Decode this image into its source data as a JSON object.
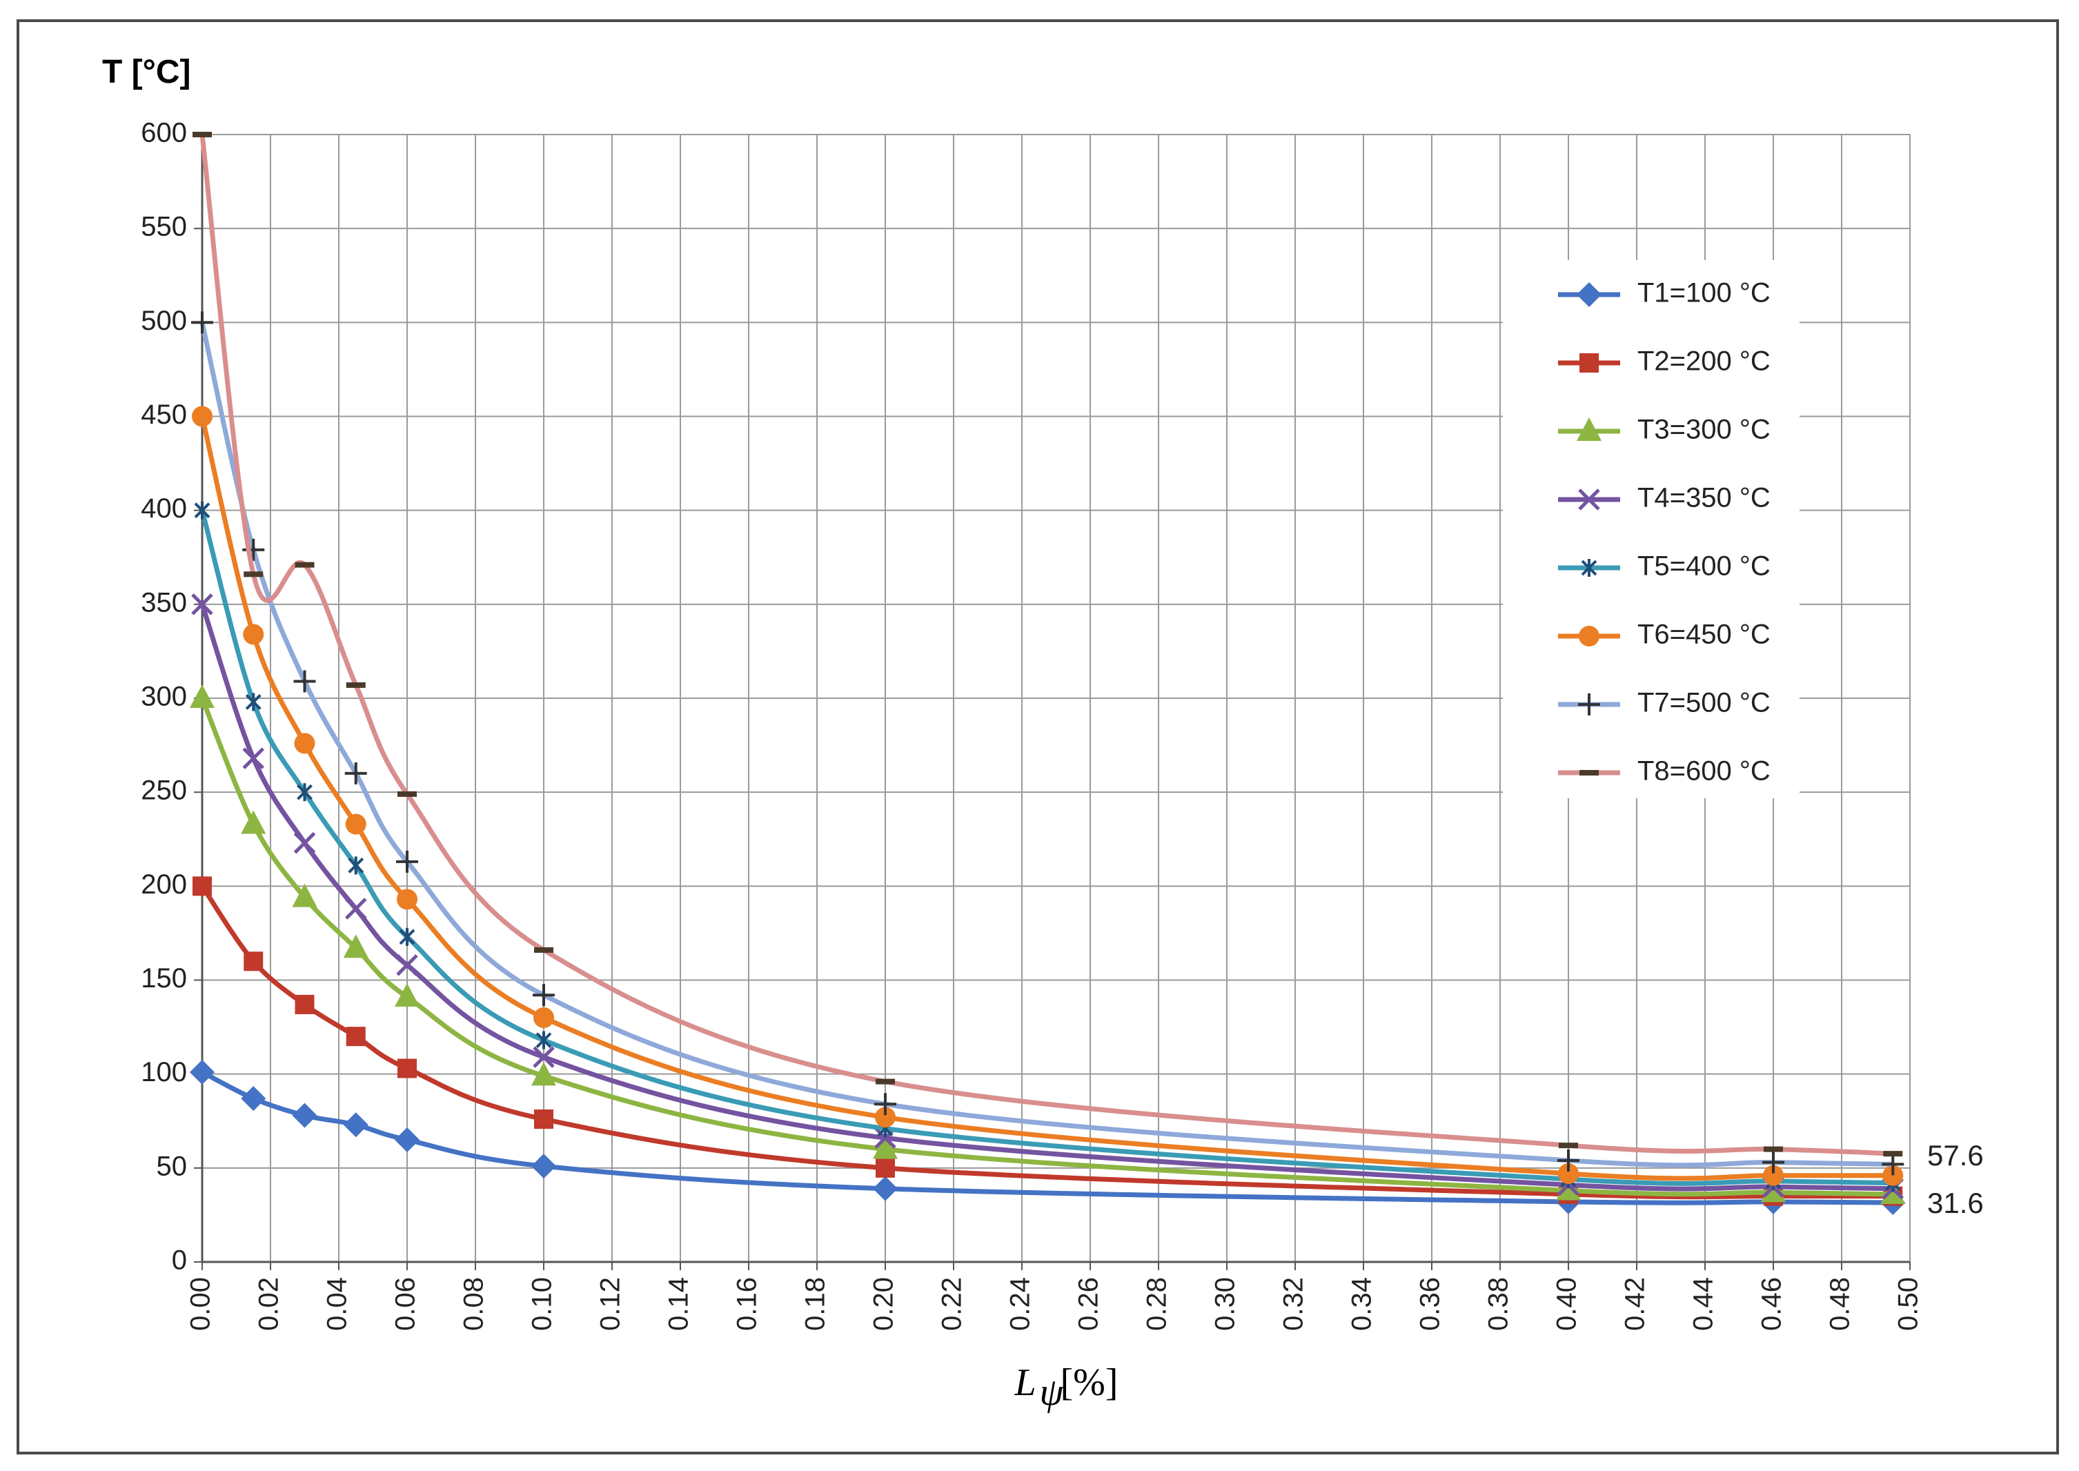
{
  "chart_data": {
    "type": "line",
    "ylabel": "T [°C]",
    "xlabel": "L",
    "xlabel_sub": "ψ",
    "xlabel_unit": "[%]",
    "xlim": [
      0,
      0.5
    ],
    "ylim": [
      0,
      600
    ],
    "grid": true,
    "legend_position": "right",
    "x_ticks": [
      "0.00",
      "0.02",
      "0.04",
      "0.06",
      "0.08",
      "0.10",
      "0.12",
      "0.14",
      "0.16",
      "0.18",
      "0.20",
      "0.22",
      "0.24",
      "0.26",
      "0.28",
      "0.30",
      "0.32",
      "0.34",
      "0.36",
      "0.38",
      "0.40",
      "0.42",
      "0.44",
      "0.46",
      "0.48",
      "0.50"
    ],
    "y_ticks": [
      "0",
      "50",
      "100",
      "150",
      "200",
      "250",
      "300",
      "350",
      "400",
      "450",
      "500",
      "550",
      "600"
    ],
    "x": [
      0.0,
      0.015,
      0.03,
      0.045,
      0.06,
      0.1,
      0.2,
      0.4,
      0.46,
      0.495
    ],
    "series": [
      {
        "name": "T1=100 °C",
        "color": "#4472C4",
        "marker": "diamond",
        "values": [
          101,
          87,
          78,
          73,
          65,
          51,
          39,
          32,
          32,
          31.6
        ]
      },
      {
        "name": "T2=200 °C",
        "color": "#C0392B",
        "marker": "square",
        "values": [
          200,
          160,
          137,
          120,
          103,
          76,
          50,
          36,
          35,
          35
        ]
      },
      {
        "name": "T3=300 °C",
        "color": "#8DB542",
        "marker": "triangle",
        "values": [
          300,
          233,
          194,
          167,
          141,
          99,
          60,
          38,
          37,
          36
        ]
      },
      {
        "name": "T4=350 °C",
        "color": "#7453A0",
        "marker": "x",
        "values": [
          350,
          268,
          223,
          188,
          158,
          109,
          66,
          41,
          40,
          39
        ]
      },
      {
        "name": "T5=400 °C",
        "color": "#3A9BB5",
        "marker": "star",
        "values": [
          400,
          298,
          250,
          211,
          173,
          118,
          71,
          44,
          43,
          42
        ]
      },
      {
        "name": "T6=450 °C",
        "color": "#EB7D23",
        "marker": "circle",
        "values": [
          450,
          334,
          276,
          233,
          193,
          130,
          77,
          47,
          46,
          46
        ]
      },
      {
        "name": "T7=500 °C",
        "color": "#8EA9D9",
        "marker": "plus",
        "values": [
          500,
          379,
          309,
          260,
          213,
          142,
          84,
          54,
          53,
          52
        ]
      },
      {
        "name": "T8=600 °C",
        "color": "#D98E8E",
        "marker": "dash",
        "values": [
          600,
          366,
          371,
          307,
          249,
          166,
          96,
          62,
          60,
          57.6
        ]
      }
    ],
    "annotations": [
      "57.6",
      "31.6"
    ]
  }
}
